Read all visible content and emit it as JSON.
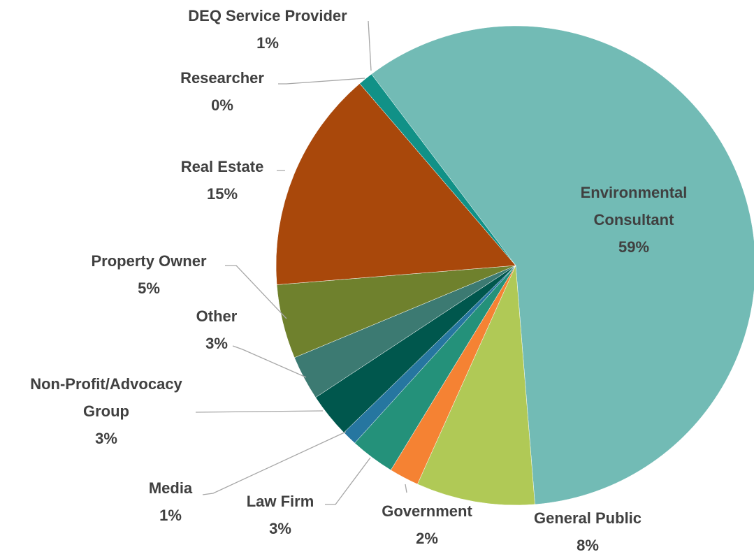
{
  "chart_data": {
    "type": "pie",
    "categories": [
      "Environmental Consultant",
      "General Public",
      "Government",
      "Law Firm",
      "Media",
      "Non-Profit/Advocacy Group",
      "Other",
      "Property Owner",
      "Real Estate",
      "Researcher",
      "DEQ Service Provider"
    ],
    "values": [
      59,
      8,
      2,
      3,
      1,
      3,
      3,
      5,
      15,
      0,
      1
    ],
    "value_labels": [
      "59%",
      "8%",
      "2%",
      "3%",
      "1%",
      "3%",
      "3%",
      "5%",
      "15%",
      "0%",
      "1%"
    ],
    "colors": [
      "#72bbb5",
      "#b0c956",
      "#f58233",
      "#24917a",
      "#2676a0",
      "#00574d",
      "#3c7a72",
      "#6f812d",
      "#a9480b",
      "#1e3c3a",
      "#119187"
    ]
  }
}
